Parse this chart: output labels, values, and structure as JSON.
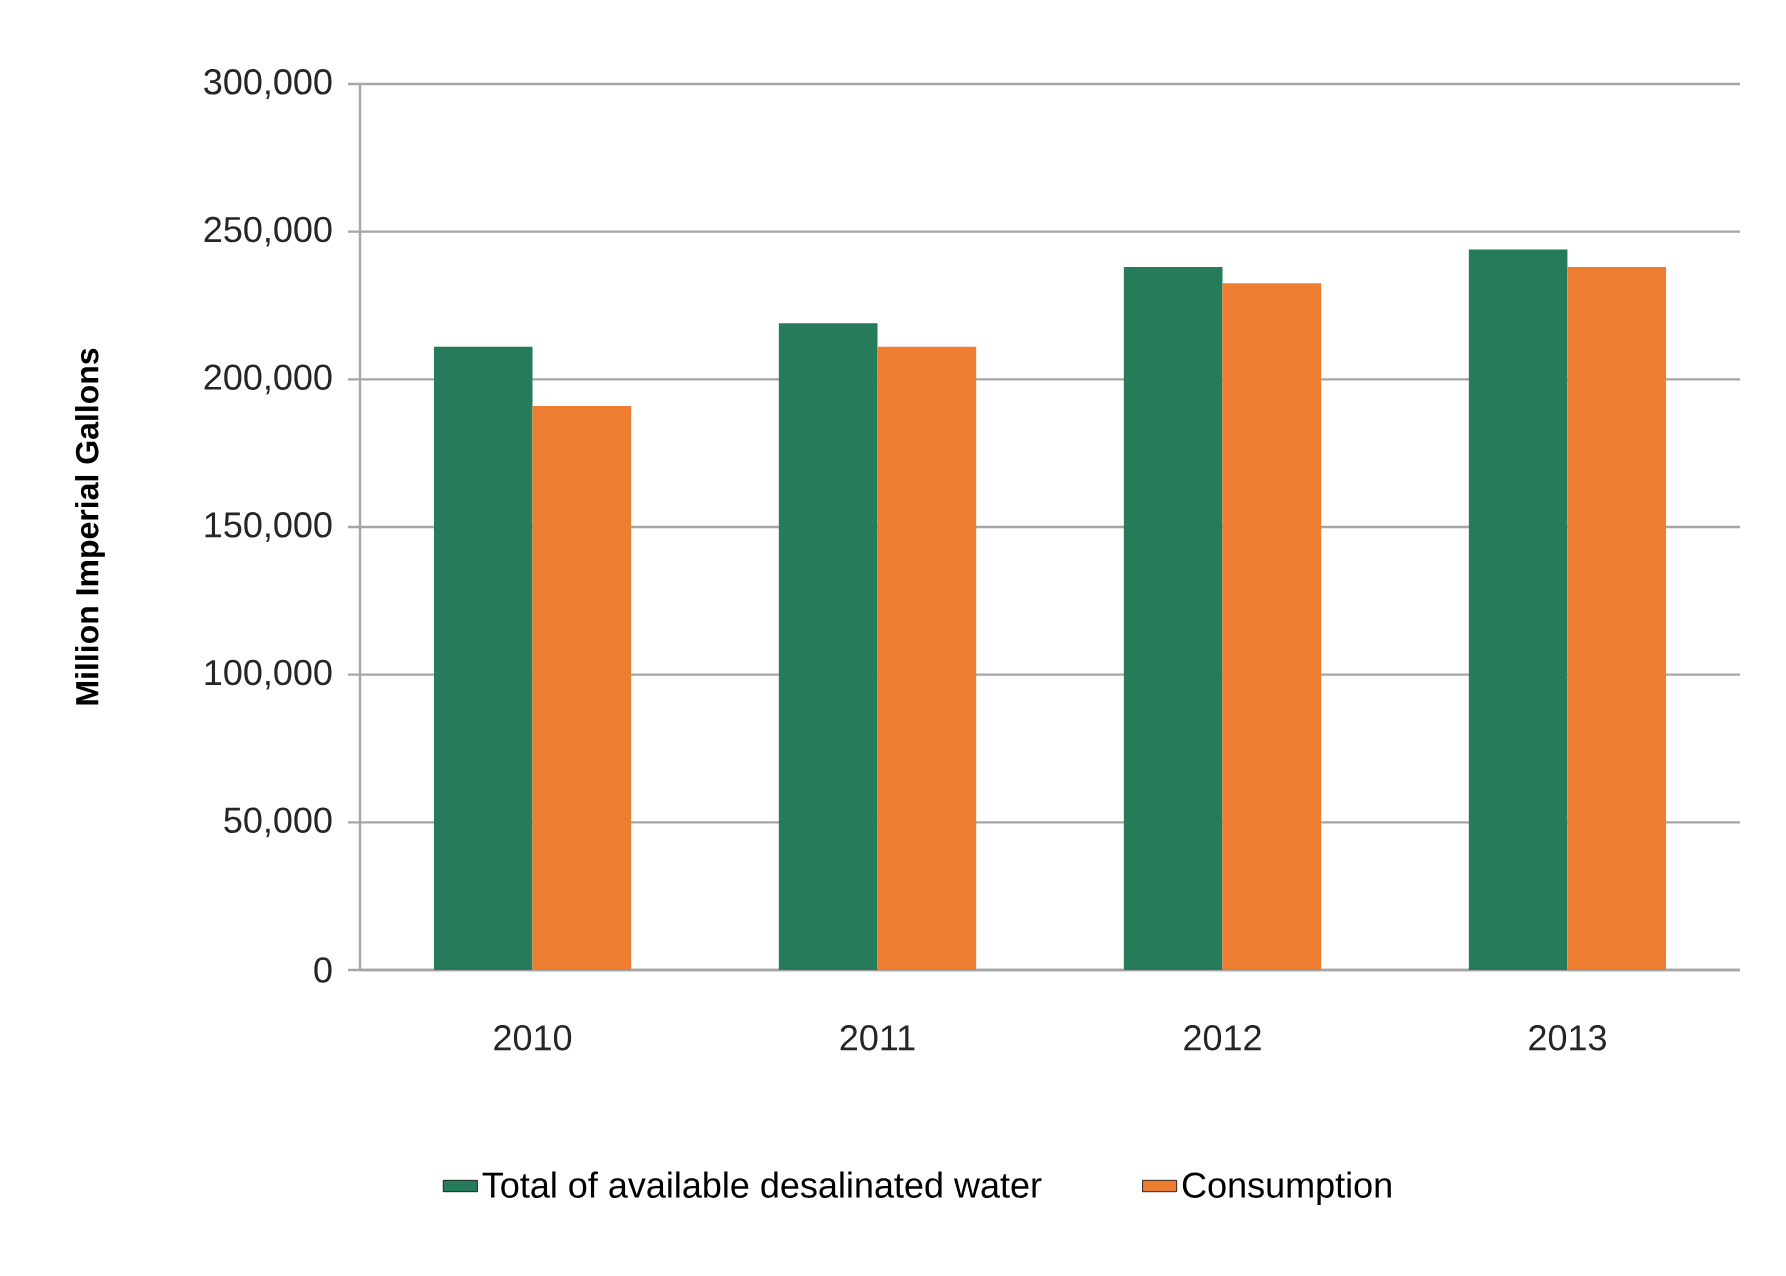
{
  "chart_data": {
    "type": "bar",
    "ylabel": "Million Imperial Gallons",
    "categories": [
      "2010",
      "2011",
      "2012",
      "2013"
    ],
    "series": [
      {
        "name": "Total of available desalinated water",
        "color": "#267c5a",
        "values": [
          211000,
          219000,
          238000,
          244000
        ]
      },
      {
        "name": "Consumption",
        "color": "#ed7d31",
        "values": [
          191000,
          211000,
          232500,
          238000
        ]
      }
    ],
    "ylim": [
      0,
      300000
    ],
    "yticks": [
      {
        "value": 0,
        "label": "0"
      },
      {
        "value": 50000,
        "label": "50,000"
      },
      {
        "value": 100000,
        "label": "100,000"
      },
      {
        "value": 150000,
        "label": "150,000"
      },
      {
        "value": 200000,
        "label": "200,000"
      },
      {
        "value": 250000,
        "label": "250,000"
      },
      {
        "value": 300000,
        "label": "300,000"
      }
    ],
    "grid": "y",
    "legend": "bottom"
  }
}
